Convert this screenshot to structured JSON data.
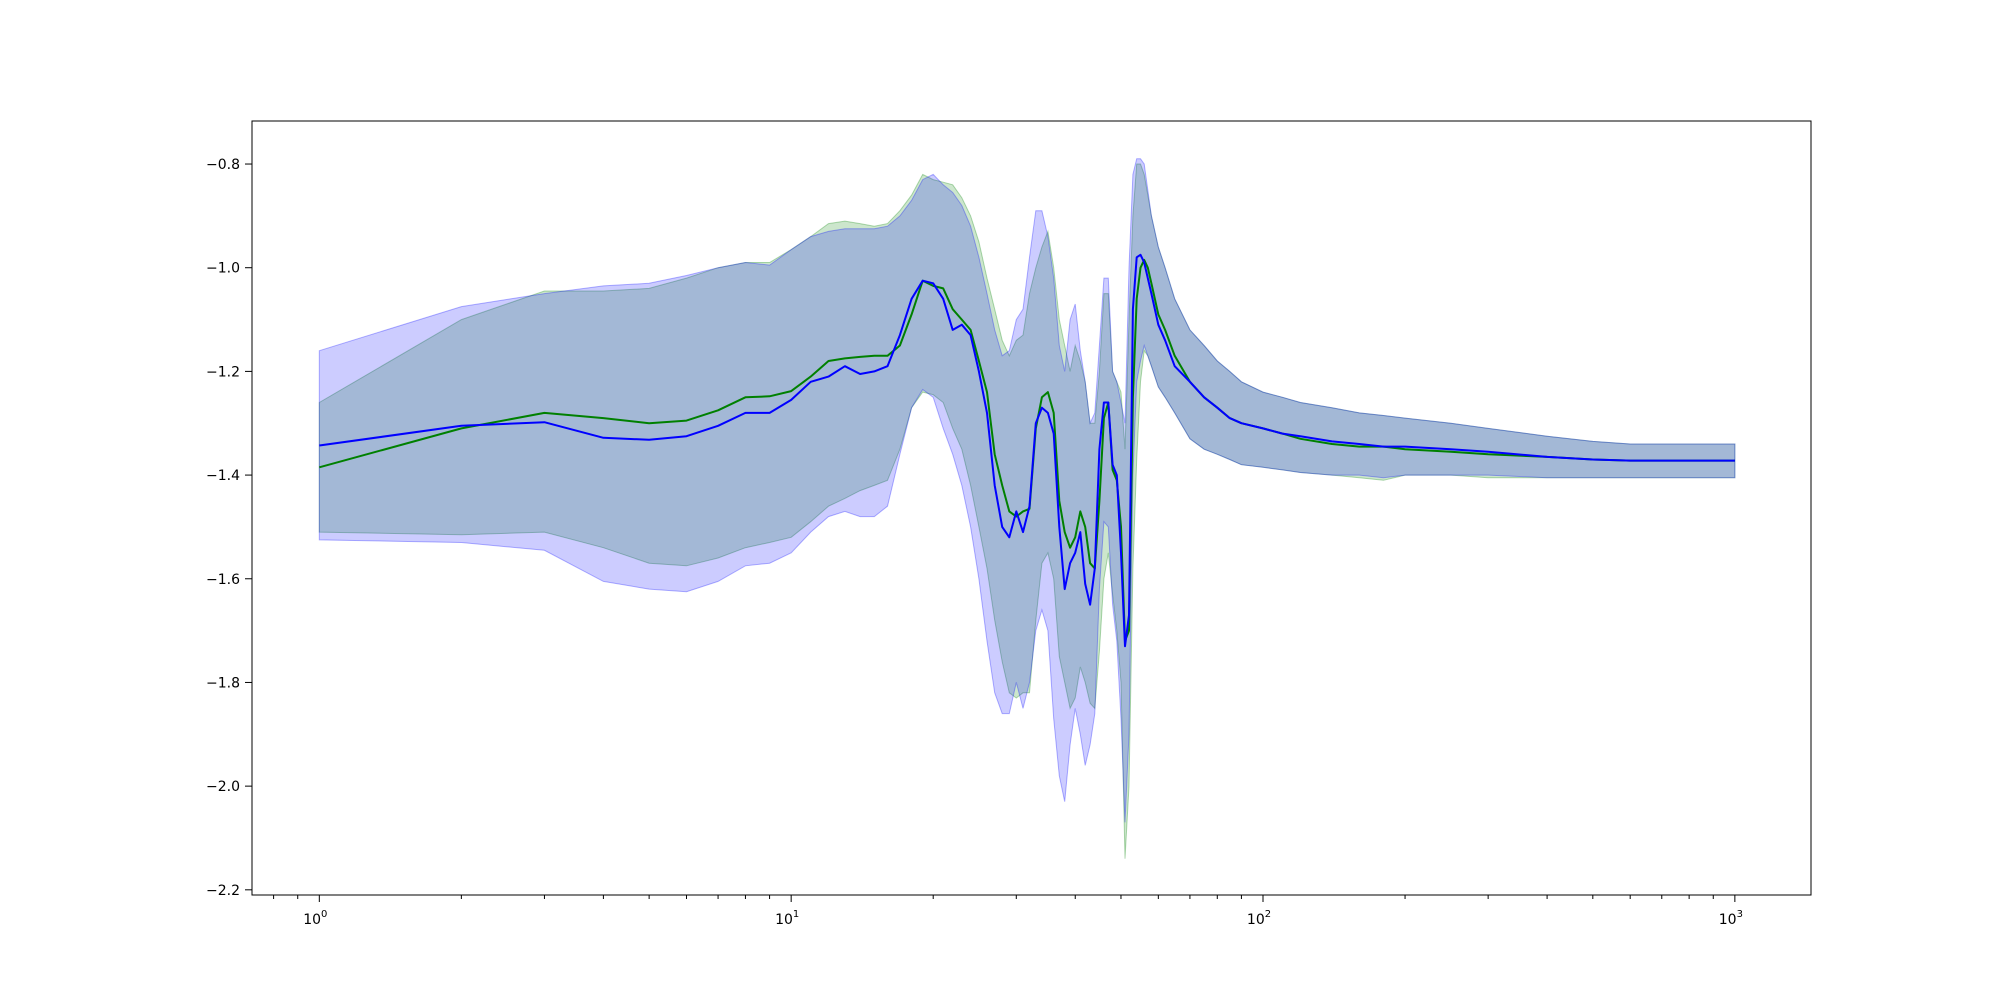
{
  "chart_data": {
    "type": "line",
    "title": "",
    "xlabel": "",
    "ylabel": "",
    "x_scale": "log",
    "xlim": [
      0.72,
      1450
    ],
    "ylim": [
      -2.21,
      -0.717
    ],
    "grid": false,
    "legend": "none",
    "x_ticks": [
      {
        "value": 1,
        "base": "10",
        "exp": "0"
      },
      {
        "value": 10,
        "base": "10",
        "exp": "1"
      },
      {
        "value": 100,
        "base": "10",
        "exp": "2"
      },
      {
        "value": 1000,
        "base": "10",
        "exp": "3"
      }
    ],
    "y_ticks": [
      {
        "value": -0.8,
        "label": "−0.8"
      },
      {
        "value": -1.0,
        "label": "−1.0"
      },
      {
        "value": -1.2,
        "label": "−1.2"
      },
      {
        "value": -1.4,
        "label": "−1.4"
      },
      {
        "value": -1.6,
        "label": "−1.6"
      },
      {
        "value": -1.8,
        "label": "−1.8"
      },
      {
        "value": -2.0,
        "label": "−2.0"
      },
      {
        "value": -2.2,
        "label": "−2.2"
      }
    ],
    "series": [
      {
        "color": "#008000",
        "band_color": "#008000",
        "band_opacity": 0.2,
        "x": [
          1,
          2,
          3,
          4,
          5,
          6,
          7,
          8,
          9,
          10,
          11,
          12,
          13,
          14,
          15,
          16,
          17,
          18,
          19,
          20,
          21,
          22,
          23,
          24,
          25,
          26,
          27,
          28,
          29,
          30,
          31,
          32,
          33,
          34,
          35,
          36,
          37,
          38,
          39,
          40,
          41,
          42,
          43,
          44,
          45,
          46,
          47,
          48,
          49,
          50,
          51,
          52,
          53,
          54,
          55,
          56,
          57,
          58,
          60,
          62,
          65,
          70,
          75,
          80,
          85,
          90,
          100,
          110,
          120,
          140,
          160,
          180,
          200,
          250,
          300,
          400,
          500,
          600,
          800,
          1000
        ],
        "y": [
          -1.385,
          -1.31,
          -1.28,
          -1.29,
          -1.3,
          -1.295,
          -1.275,
          -1.25,
          -1.248,
          -1.238,
          -1.21,
          -1.18,
          -1.175,
          -1.172,
          -1.17,
          -1.17,
          -1.15,
          -1.09,
          -1.025,
          -1.035,
          -1.04,
          -1.08,
          -1.1,
          -1.12,
          -1.18,
          -1.24,
          -1.36,
          -1.42,
          -1.47,
          -1.48,
          -1.47,
          -1.465,
          -1.31,
          -1.25,
          -1.24,
          -1.28,
          -1.45,
          -1.51,
          -1.54,
          -1.52,
          -1.47,
          -1.5,
          -1.57,
          -1.58,
          -1.45,
          -1.29,
          -1.26,
          -1.39,
          -1.41,
          -1.5,
          -1.72,
          -1.7,
          -1.25,
          -1.06,
          -1.0,
          -0.985,
          -1.0,
          -1.03,
          -1.09,
          -1.12,
          -1.17,
          -1.22,
          -1.25,
          -1.27,
          -1.29,
          -1.3,
          -1.31,
          -1.32,
          -1.33,
          -1.34,
          -1.345,
          -1.345,
          -1.35,
          -1.355,
          -1.36,
          -1.365,
          -1.37,
          -1.372,
          -1.372,
          -1.372
        ],
        "upper": [
          -1.26,
          -1.1,
          -1.045,
          -1.045,
          -1.04,
          -1.02,
          -1.0,
          -0.99,
          -0.99,
          -0.965,
          -0.94,
          -0.915,
          -0.91,
          -0.915,
          -0.92,
          -0.915,
          -0.89,
          -0.86,
          -0.82,
          -0.83,
          -0.835,
          -0.84,
          -0.865,
          -0.9,
          -0.95,
          -1.02,
          -1.08,
          -1.14,
          -1.17,
          -1.14,
          -1.13,
          -1.05,
          -1.0,
          -0.96,
          -0.93,
          -1.0,
          -1.1,
          -1.15,
          -1.2,
          -1.15,
          -1.18,
          -1.22,
          -1.3,
          -1.3,
          -1.2,
          -1.05,
          -1.05,
          -1.2,
          -1.22,
          -1.24,
          -1.35,
          -1.1,
          -0.9,
          -0.8,
          -0.8,
          -0.82,
          -0.86,
          -0.9,
          -0.96,
          -1.0,
          -1.06,
          -1.12,
          -1.15,
          -1.18,
          -1.2,
          -1.22,
          -1.24,
          -1.25,
          -1.26,
          -1.27,
          -1.28,
          -1.285,
          -1.29,
          -1.3,
          -1.31,
          -1.325,
          -1.335,
          -1.34,
          -1.34,
          -1.34
        ],
        "lower": [
          -1.51,
          -1.515,
          -1.51,
          -1.54,
          -1.57,
          -1.575,
          -1.56,
          -1.54,
          -1.53,
          -1.52,
          -1.49,
          -1.46,
          -1.445,
          -1.43,
          -1.42,
          -1.41,
          -1.35,
          -1.27,
          -1.24,
          -1.245,
          -1.26,
          -1.31,
          -1.35,
          -1.42,
          -1.5,
          -1.58,
          -1.68,
          -1.76,
          -1.82,
          -1.83,
          -1.82,
          -1.82,
          -1.68,
          -1.57,
          -1.55,
          -1.6,
          -1.75,
          -1.8,
          -1.85,
          -1.83,
          -1.77,
          -1.8,
          -1.84,
          -1.85,
          -1.74,
          -1.6,
          -1.55,
          -1.63,
          -1.7,
          -1.8,
          -2.14,
          -2.0,
          -1.58,
          -1.37,
          -1.22,
          -1.16,
          -1.17,
          -1.19,
          -1.23,
          -1.25,
          -1.28,
          -1.33,
          -1.35,
          -1.36,
          -1.37,
          -1.38,
          -1.385,
          -1.39,
          -1.395,
          -1.4,
          -1.405,
          -1.41,
          -1.4,
          -1.4,
          -1.405,
          -1.405,
          -1.405,
          -1.405,
          -1.405,
          -1.405
        ]
      },
      {
        "color": "#0000ff",
        "band_color": "#0000ff",
        "band_opacity": 0.2,
        "x": [
          1,
          2,
          3,
          4,
          5,
          6,
          7,
          8,
          9,
          10,
          11,
          12,
          13,
          14,
          15,
          16,
          17,
          18,
          19,
          20,
          21,
          22,
          23,
          24,
          25,
          26,
          27,
          28,
          29,
          30,
          31,
          32,
          33,
          34,
          35,
          36,
          37,
          38,
          39,
          40,
          41,
          42,
          43,
          44,
          45,
          46,
          47,
          48,
          49,
          50,
          51,
          52,
          53,
          54,
          55,
          56,
          57,
          58,
          60,
          62,
          65,
          70,
          75,
          80,
          85,
          90,
          100,
          110,
          120,
          140,
          160,
          180,
          200,
          250,
          300,
          400,
          500,
          600,
          800,
          1000
        ],
        "y": [
          -1.343,
          -1.305,
          -1.298,
          -1.328,
          -1.332,
          -1.325,
          -1.305,
          -1.28,
          -1.28,
          -1.255,
          -1.22,
          -1.21,
          -1.19,
          -1.205,
          -1.2,
          -1.19,
          -1.13,
          -1.06,
          -1.025,
          -1.03,
          -1.06,
          -1.12,
          -1.11,
          -1.13,
          -1.2,
          -1.28,
          -1.42,
          -1.5,
          -1.52,
          -1.47,
          -1.51,
          -1.46,
          -1.3,
          -1.27,
          -1.28,
          -1.32,
          -1.5,
          -1.62,
          -1.57,
          -1.55,
          -1.51,
          -1.61,
          -1.65,
          -1.58,
          -1.35,
          -1.26,
          -1.26,
          -1.38,
          -1.4,
          -1.55,
          -1.73,
          -1.67,
          -1.08,
          -0.98,
          -0.975,
          -0.99,
          -1.02,
          -1.05,
          -1.11,
          -1.14,
          -1.19,
          -1.22,
          -1.25,
          -1.27,
          -1.29,
          -1.3,
          -1.31,
          -1.32,
          -1.325,
          -1.335,
          -1.34,
          -1.345,
          -1.345,
          -1.35,
          -1.355,
          -1.365,
          -1.37,
          -1.372,
          -1.372,
          -1.372
        ],
        "upper": [
          -1.16,
          -1.075,
          -1.05,
          -1.035,
          -1.03,
          -1.015,
          -1.0,
          -0.99,
          -0.995,
          -0.965,
          -0.94,
          -0.93,
          -0.925,
          -0.925,
          -0.925,
          -0.92,
          -0.9,
          -0.87,
          -0.83,
          -0.82,
          -0.84,
          -0.855,
          -0.88,
          -0.92,
          -0.98,
          -1.05,
          -1.12,
          -1.17,
          -1.16,
          -1.1,
          -1.08,
          -0.98,
          -0.89,
          -0.89,
          -0.94,
          -1.02,
          -1.15,
          -1.2,
          -1.1,
          -1.07,
          -1.16,
          -1.22,
          -1.3,
          -1.28,
          -1.15,
          -1.02,
          -1.02,
          -1.2,
          -1.22,
          -1.26,
          -1.3,
          -1.0,
          -0.82,
          -0.79,
          -0.79,
          -0.8,
          -0.85,
          -0.9,
          -0.96,
          -1.0,
          -1.06,
          -1.12,
          -1.15,
          -1.18,
          -1.2,
          -1.22,
          -1.24,
          -1.25,
          -1.26,
          -1.27,
          -1.28,
          -1.285,
          -1.29,
          -1.3,
          -1.31,
          -1.325,
          -1.335,
          -1.34,
          -1.34,
          -1.34
        ],
        "lower": [
          -1.525,
          -1.53,
          -1.545,
          -1.605,
          -1.62,
          -1.625,
          -1.605,
          -1.575,
          -1.57,
          -1.55,
          -1.51,
          -1.48,
          -1.47,
          -1.48,
          -1.48,
          -1.46,
          -1.36,
          -1.27,
          -1.235,
          -1.25,
          -1.31,
          -1.36,
          -1.42,
          -1.5,
          -1.6,
          -1.72,
          -1.82,
          -1.86,
          -1.86,
          -1.8,
          -1.85,
          -1.8,
          -1.7,
          -1.66,
          -1.7,
          -1.87,
          -1.98,
          -2.03,
          -1.92,
          -1.85,
          -1.9,
          -1.96,
          -1.92,
          -1.86,
          -1.62,
          -1.49,
          -1.5,
          -1.65,
          -1.72,
          -1.87,
          -2.07,
          -1.9,
          -1.4,
          -1.22,
          -1.18,
          -1.15,
          -1.17,
          -1.19,
          -1.23,
          -1.25,
          -1.28,
          -1.33,
          -1.35,
          -1.36,
          -1.37,
          -1.38,
          -1.385,
          -1.39,
          -1.395,
          -1.4,
          -1.4,
          -1.405,
          -1.4,
          -1.4,
          -1.4,
          -1.405,
          -1.405,
          -1.405,
          -1.405,
          -1.405
        ]
      }
    ]
  }
}
